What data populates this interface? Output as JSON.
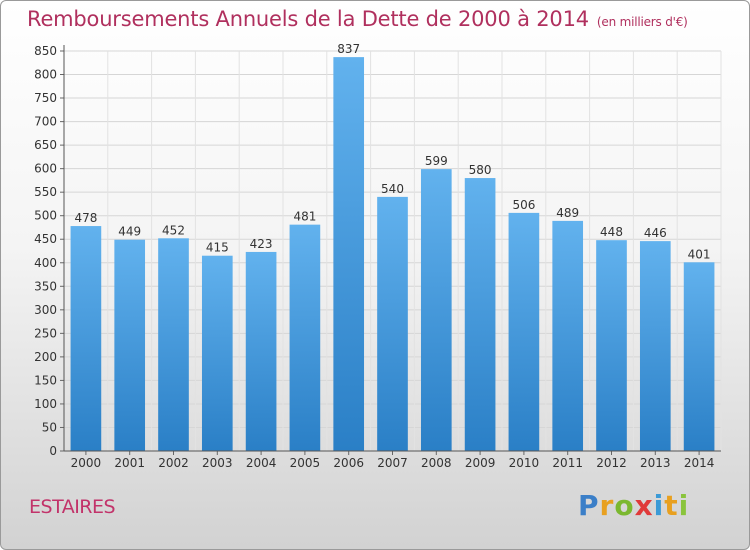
{
  "chart_data": {
    "type": "bar",
    "title": "Remboursements Annuels de la Dette de 2000 à 2014",
    "subtitle": "(en milliers d'€)",
    "categories": [
      "2000",
      "2001",
      "2002",
      "2003",
      "2004",
      "2005",
      "2006",
      "2007",
      "2008",
      "2009",
      "2010",
      "2011",
      "2012",
      "2013",
      "2014"
    ],
    "values": [
      478,
      449,
      452,
      415,
      423,
      481,
      837,
      540,
      599,
      580,
      506,
      489,
      448,
      446,
      401
    ],
    "ylim": [
      0,
      850
    ],
    "yticks": [
      0,
      50,
      100,
      150,
      200,
      250,
      300,
      350,
      400,
      450,
      500,
      550,
      600,
      650,
      700,
      750,
      800,
      850
    ],
    "grid": true,
    "bar_color": "#3d8fd6"
  },
  "commune": "ESTAIRES",
  "logo": {
    "letters": [
      "P",
      "r",
      "o",
      "x",
      "i",
      "t",
      "i"
    ],
    "colors": [
      "#3b7fc8",
      "#e8a020",
      "#7bb830",
      "#e03a3a",
      "#3b9ad6",
      "#e8a020",
      "#8ac43c"
    ]
  }
}
